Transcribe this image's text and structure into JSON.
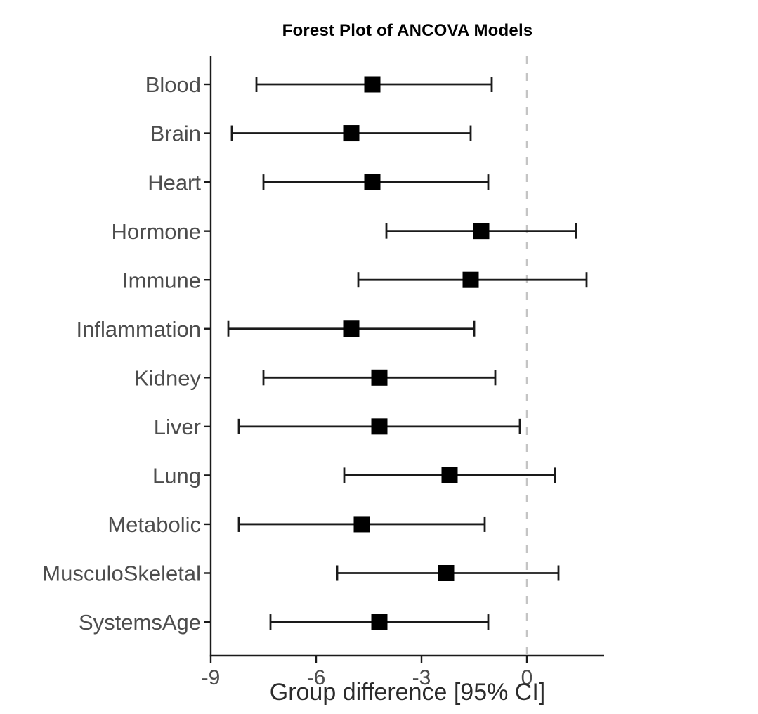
{
  "figure": {
    "title": "Forest Plot of ANCOVA Models",
    "x_axis_label": "Group difference [95% CI]"
  },
  "chart_data": {
    "type": "scatter",
    "subtype": "forest-plot",
    "title": "Forest Plot of ANCOVA Models",
    "xlabel": "Group difference [95% CI]",
    "ylabel": "",
    "categories": [
      "Blood",
      "Brain",
      "Heart",
      "Hormone",
      "Immune",
      "Inflammation",
      "Kidney",
      "Liver",
      "Lung",
      "Metabolic",
      "MusculoSkeletal",
      "SystemsAge"
    ],
    "series": [
      {
        "name": "Group difference [95% CI]",
        "marker": "filled-square",
        "estimates": [
          -4.4,
          -5.0,
          -4.4,
          -1.3,
          -1.6,
          -5.0,
          -4.2,
          -4.2,
          -2.2,
          -4.7,
          -2.3,
          -4.2
        ],
        "ci_lower": [
          -7.7,
          -8.4,
          -7.5,
          -4.0,
          -4.8,
          -8.5,
          -7.5,
          -8.2,
          -5.2,
          -8.2,
          -5.4,
          -7.3
        ],
        "ci_upper": [
          -1.0,
          -1.6,
          -1.1,
          1.4,
          1.7,
          -1.5,
          -0.9,
          -0.2,
          0.8,
          -1.2,
          0.9,
          -1.1
        ]
      }
    ],
    "xlim": [
      -9,
      2.2
    ],
    "xticks": [
      -9,
      -6,
      -3,
      0
    ],
    "xtick_labels": [
      "-9",
      "-6",
      "-3",
      "0"
    ],
    "reference_line_x": 0,
    "grid": false,
    "legend": "none",
    "colors": {
      "marker": "#000000",
      "ci_line": "#1a1a1a",
      "axis_line": "#1a1a1a",
      "tick_text": "#4d4d4d",
      "category_text": "#4d4d4d",
      "reference_line": "#c4c4c4",
      "title_text": "#000000",
      "background": "#ffffff"
    }
  }
}
